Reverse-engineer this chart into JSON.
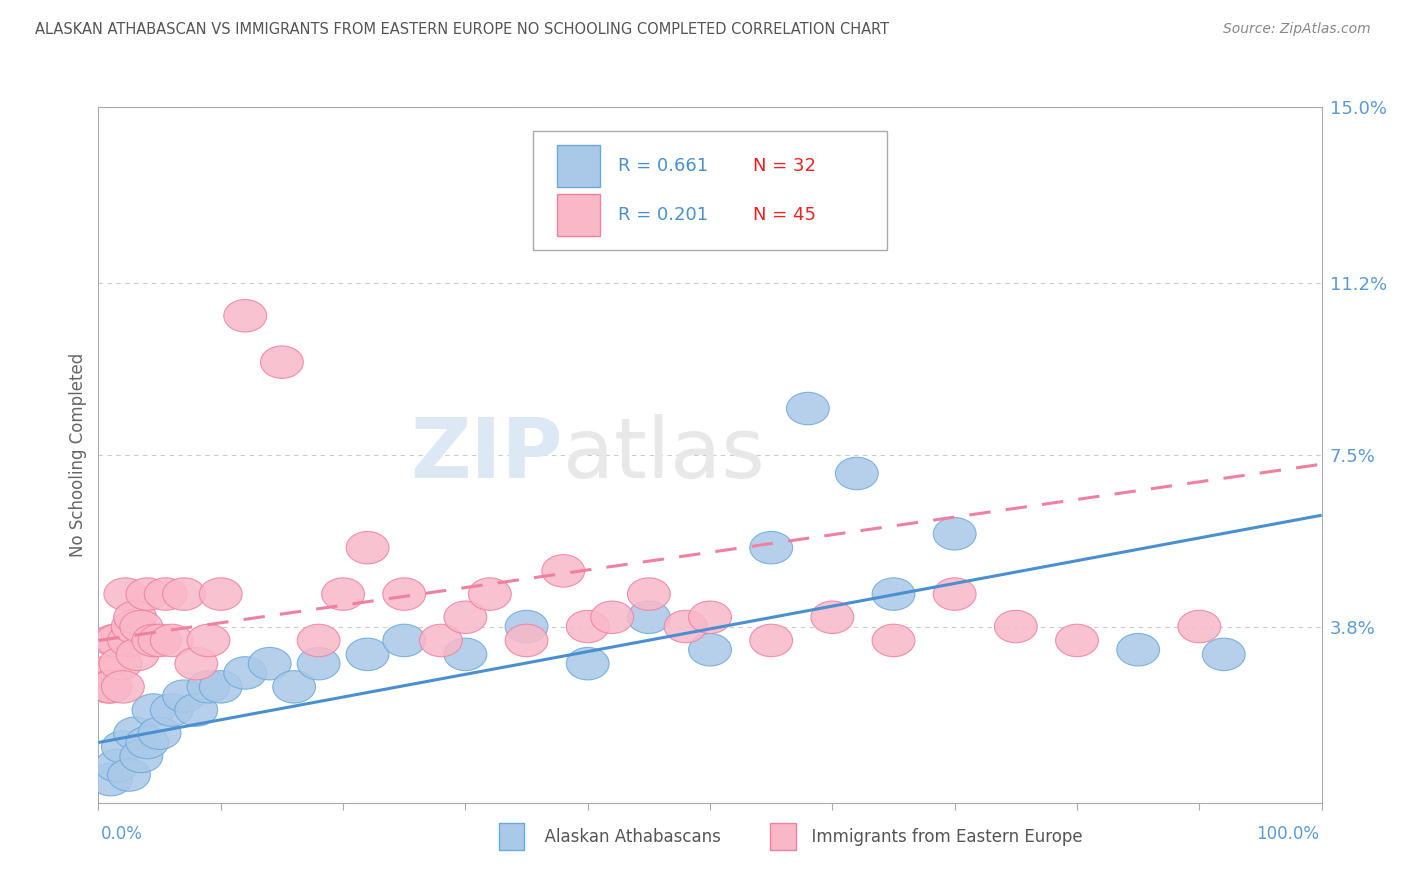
{
  "title": "ALASKAN ATHABASCAN VS IMMIGRANTS FROM EASTERN EUROPE NO SCHOOLING COMPLETED CORRELATION CHART",
  "source": "Source: ZipAtlas.com",
  "ylabel": "No Schooling Completed",
  "yticks": [
    0.0,
    3.8,
    7.5,
    11.2,
    15.0
  ],
  "ytick_labels": [
    "",
    "3.8%",
    "7.5%",
    "11.2%",
    "15.0%"
  ],
  "xlim": [
    0.0,
    100.0
  ],
  "ylim": [
    0.0,
    15.0
  ],
  "legend1_r": "0.661",
  "legend1_n": "32",
  "legend2_r": "0.201",
  "legend2_n": "45",
  "series1_label": "Alaskan Athabascans",
  "series2_label": "Immigrants from Eastern Europe",
  "series1_color": "#aac8e8",
  "series2_color": "#f9b8c8",
  "series1_edge_color": "#6aaad8",
  "series2_edge_color": "#f080a0",
  "series1_line_color": "#4a90d0",
  "series2_line_color": "#f080a0",
  "title_color": "#555555",
  "source_color": "#888888",
  "legend_r_color": "#4a90d0",
  "legend_n_color": "#ee2222",
  "watermark_color": "#e0e8f0",
  "blue_series_x": [
    1.0,
    1.5,
    2.0,
    2.5,
    3.0,
    3.5,
    4.0,
    4.5,
    5.0,
    6.0,
    7.0,
    8.0,
    9.0,
    10.0,
    12.0,
    14.0,
    16.0,
    18.0,
    22.0,
    25.0,
    30.0,
    35.0,
    40.0,
    45.0,
    50.0,
    55.0,
    58.0,
    62.0,
    65.0,
    70.0,
    85.0,
    92.0
  ],
  "blue_series_y": [
    0.5,
    0.8,
    1.2,
    0.6,
    1.5,
    1.0,
    1.3,
    2.0,
    1.5,
    2.0,
    2.3,
    2.0,
    2.5,
    2.5,
    2.8,
    3.0,
    2.5,
    3.0,
    3.2,
    3.5,
    3.2,
    3.8,
    3.0,
    4.0,
    3.3,
    5.5,
    8.5,
    7.1,
    4.5,
    5.8,
    3.3,
    3.2
  ],
  "pink_series_x": [
    0.5,
    0.8,
    1.0,
    1.3,
    1.5,
    1.8,
    2.0,
    2.2,
    2.5,
    2.8,
    3.0,
    3.2,
    3.5,
    4.0,
    4.5,
    5.0,
    5.5,
    6.0,
    7.0,
    8.0,
    9.0,
    10.0,
    12.0,
    15.0,
    18.0,
    20.0,
    22.0,
    25.0,
    28.0,
    30.0,
    32.0,
    35.0,
    38.0,
    40.0,
    42.0,
    45.0,
    48.0,
    50.0,
    55.0,
    60.0,
    65.0,
    70.0,
    75.0,
    80.0,
    90.0
  ],
  "pink_series_y": [
    2.8,
    2.5,
    2.5,
    3.5,
    3.5,
    3.0,
    2.5,
    4.5,
    3.5,
    3.8,
    4.0,
    3.2,
    3.8,
    4.5,
    3.5,
    3.5,
    4.5,
    3.5,
    4.5,
    3.0,
    3.5,
    4.5,
    10.5,
    9.5,
    3.5,
    4.5,
    5.5,
    4.5,
    3.5,
    4.0,
    4.5,
    3.5,
    5.0,
    3.8,
    4.0,
    4.5,
    3.8,
    4.0,
    3.5,
    4.0,
    3.5,
    4.5,
    3.8,
    3.5,
    3.8
  ],
  "blue_line_x0": 0.0,
  "blue_line_y0": 1.3,
  "blue_line_x1": 100.0,
  "blue_line_y1": 6.2,
  "pink_line_x0": 0.0,
  "pink_line_y0": 3.5,
  "pink_line_x1": 100.0,
  "pink_line_y1": 7.3
}
